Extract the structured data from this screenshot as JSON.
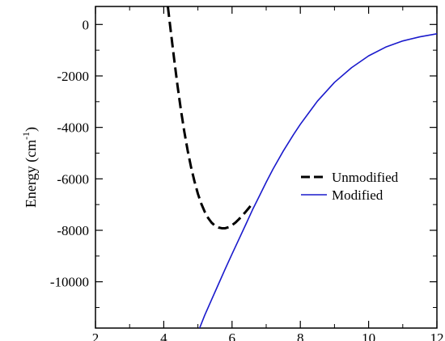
{
  "chart_data": {
    "type": "line",
    "title": "",
    "xlabel": "",
    "ylabel": "Energy (cm",
    "ylabel_superscript": "-1",
    "ylabel_suffix": ")",
    "xlim": [
      2,
      12
    ],
    "ylim": [
      -11800,
      700
    ],
    "x_ticks": [
      2,
      4,
      6,
      8,
      10,
      12
    ],
    "x_tick_labels": [
      "2",
      "4",
      "6",
      "8",
      "10",
      "12"
    ],
    "y_ticks": [
      0,
      -2000,
      -4000,
      -6000,
      -8000,
      -10000
    ],
    "y_tick_labels": [
      "0",
      "-2000",
      "-4000",
      "-6000",
      "-8000",
      "-10000"
    ],
    "grid": false,
    "legend_position": "right",
    "series": [
      {
        "name": "Unmodified",
        "color": "#000000",
        "style": "dashed",
        "x": [
          4.12,
          4.2,
          4.3,
          4.4,
          4.5,
          4.6,
          4.7,
          4.8,
          4.9,
          5.0,
          5.1,
          5.2,
          5.3,
          5.4,
          5.5,
          5.6,
          5.7,
          5.8,
          5.9,
          6.0,
          6.1,
          6.2,
          6.3,
          6.4,
          6.5,
          6.6
        ],
        "y": [
          700,
          -200,
          -1300,
          -2350,
          -3300,
          -4150,
          -4900,
          -5550,
          -6100,
          -6580,
          -6970,
          -7280,
          -7520,
          -7700,
          -7820,
          -7890,
          -7920,
          -7920,
          -7880,
          -7800,
          -7700,
          -7570,
          -7430,
          -7280,
          -7120,
          -6950
        ]
      },
      {
        "name": "Modified",
        "color": "#1a1acc",
        "style": "solid",
        "x": [
          5.05,
          5.2,
          5.4,
          5.6,
          5.8,
          6.0,
          6.2,
          6.4,
          6.6,
          6.8,
          7.0,
          7.2,
          7.5,
          7.8,
          8.0,
          8.5,
          9.0,
          9.5,
          10.0,
          10.5,
          11.0,
          11.5,
          12.0
        ],
        "y": [
          -11800,
          -11300,
          -10700,
          -10100,
          -9500,
          -8920,
          -8350,
          -7780,
          -7200,
          -6670,
          -6130,
          -5620,
          -4920,
          -4280,
          -3880,
          -2980,
          -2250,
          -1680,
          -1220,
          -880,
          -640,
          -480,
          -360
        ]
      }
    ]
  }
}
